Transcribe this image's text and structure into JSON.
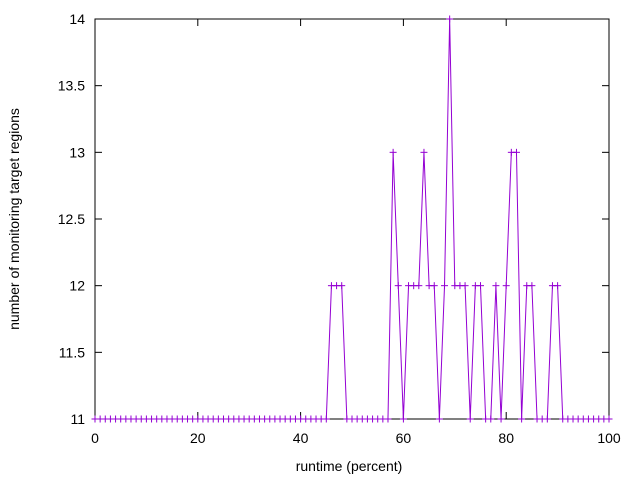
{
  "chart_data": {
    "type": "line",
    "xlabel": "runtime (percent)",
    "ylabel": "number of monitoring target regions",
    "xlim": [
      0,
      100
    ],
    "ylim": [
      11,
      14
    ],
    "xticks": [
      0,
      20,
      40,
      60,
      80,
      100
    ],
    "yticks": [
      11,
      11.5,
      12,
      12.5,
      13,
      13.5,
      14
    ],
    "ytick_labels": [
      "11",
      "11.5",
      "12",
      "12.5",
      "13",
      "13.5",
      "14"
    ],
    "grid": false,
    "legend": "none",
    "series": [
      {
        "color": "#9400d3",
        "marker": "plus",
        "x": [
          0,
          1,
          2,
          3,
          4,
          5,
          6,
          7,
          8,
          9,
          10,
          11,
          12,
          13,
          14,
          15,
          16,
          17,
          18,
          19,
          20,
          21,
          22,
          23,
          24,
          25,
          26,
          27,
          28,
          29,
          30,
          31,
          32,
          33,
          34,
          35,
          36,
          37,
          38,
          39,
          40,
          41,
          42,
          43,
          44,
          45,
          46,
          47,
          48,
          49,
          50,
          51,
          52,
          53,
          54,
          55,
          56,
          57,
          58,
          59,
          60,
          61,
          62,
          63,
          64,
          65,
          66,
          67,
          68,
          69,
          70,
          71,
          72,
          73,
          74,
          75,
          76,
          77,
          78,
          79,
          80,
          81,
          82,
          83,
          84,
          85,
          86,
          87,
          88,
          89,
          90,
          91,
          92,
          93,
          94,
          95,
          96,
          97,
          98,
          99,
          100
        ],
        "y": [
          11,
          11,
          11,
          11,
          11,
          11,
          11,
          11,
          11,
          11,
          11,
          11,
          11,
          11,
          11,
          11,
          11,
          11,
          11,
          11,
          11,
          11,
          11,
          11,
          11,
          11,
          11,
          11,
          11,
          11,
          11,
          11,
          11,
          11,
          11,
          11,
          11,
          11,
          11,
          11,
          11,
          11,
          11,
          11,
          11,
          11,
          12,
          12,
          12,
          11,
          11,
          11,
          11,
          11,
          11,
          11,
          11,
          11,
          13,
          12,
          11,
          12,
          12,
          12,
          13,
          12,
          12,
          11,
          12,
          14,
          12,
          12,
          12,
          11,
          12,
          12,
          11,
          11,
          12,
          11,
          12,
          13,
          13,
          11,
          12,
          12,
          11,
          11,
          11,
          12,
          12,
          11,
          11,
          11,
          11,
          11,
          11,
          11,
          11,
          11,
          11
        ]
      }
    ]
  }
}
